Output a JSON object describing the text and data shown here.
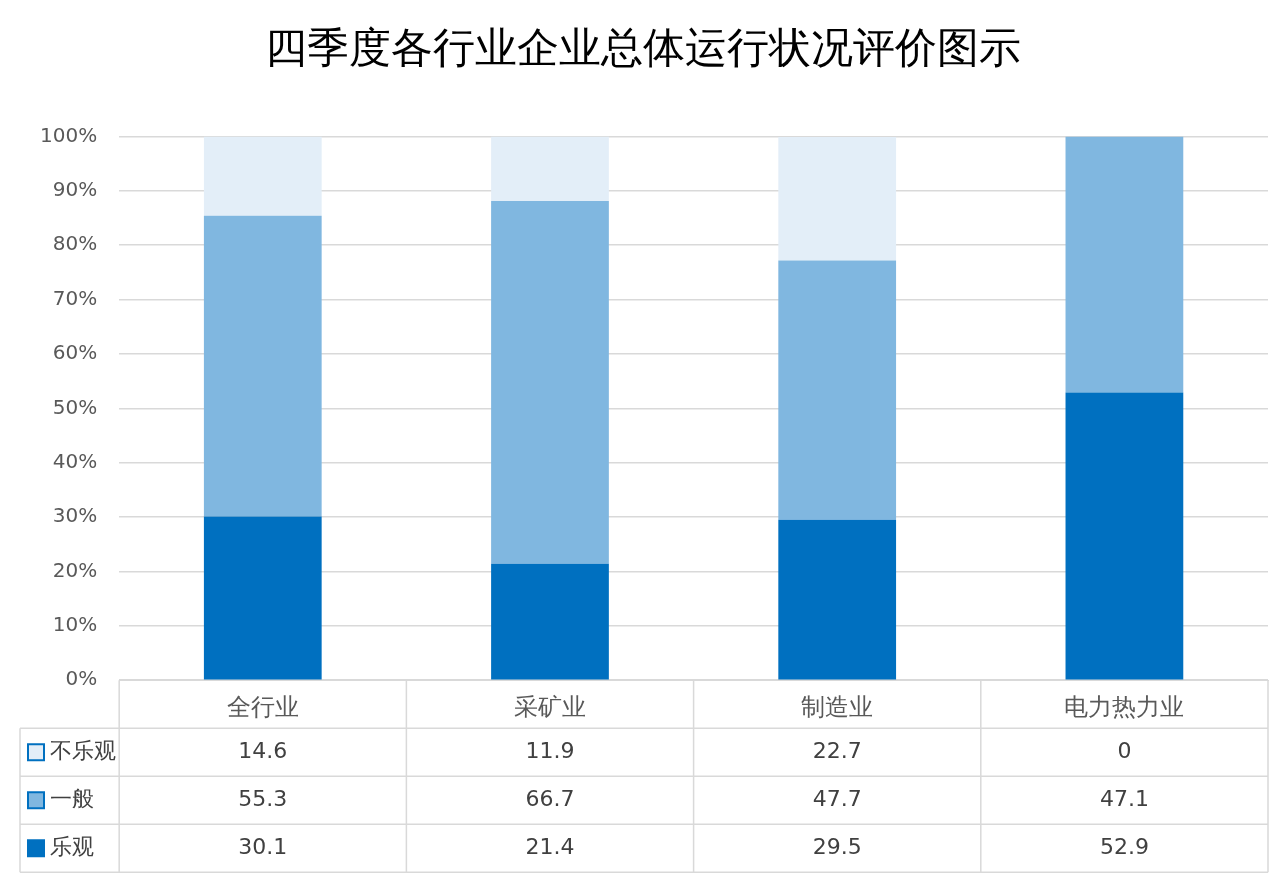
{
  "chart_data": {
    "type": "bar",
    "title": "四季度各行业企业总体运行状况评价图示",
    "categories": [
      "全行业",
      "采矿业",
      "制造业",
      "电力热力业"
    ],
    "stacked": true,
    "series": [
      {
        "name": "乐观",
        "color": "#0070c0",
        "values": [
          30.1,
          21.4,
          29.5,
          52.9
        ]
      },
      {
        "name": "一般",
        "color": "#80b7e0",
        "values": [
          55.3,
          66.7,
          47.7,
          47.1
        ]
      },
      {
        "name": "不乐观",
        "color": "#e3eef8",
        "values": [
          14.6,
          11.9,
          22.7,
          0
        ]
      }
    ],
    "ylim": [
      0,
      100
    ],
    "yticks": [
      {
        "value": 0,
        "label": "0%"
      },
      {
        "value": 10,
        "label": "10%"
      },
      {
        "value": 20,
        "label": "20%"
      },
      {
        "value": 30,
        "label": "30%"
      },
      {
        "value": 40,
        "label": "40%"
      },
      {
        "value": 50,
        "label": "50%"
      },
      {
        "value": 60,
        "label": "60%"
      },
      {
        "value": 70,
        "label": "70%"
      },
      {
        "value": 80,
        "label": "80%"
      },
      {
        "value": 90,
        "label": "90%"
      },
      {
        "value": 100,
        "label": "100%"
      }
    ],
    "grid": "y",
    "data_labels": true,
    "legend": "bottom left"
  }
}
